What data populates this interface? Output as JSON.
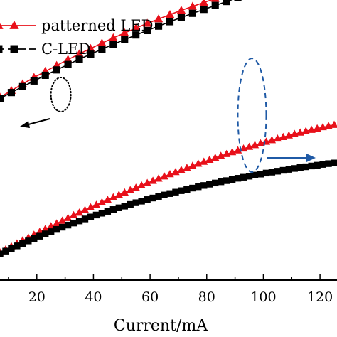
{
  "chart_data": {
    "type": "line",
    "xlabel": "Current/mA",
    "xlim": [
      7,
      126
    ],
    "x_ticks": [
      "20",
      "40",
      "60",
      "80",
      "100",
      "120"
    ],
    "x_tick_values": [
      20,
      40,
      60,
      80,
      100,
      120
    ],
    "legend": [
      {
        "label": "patterned LED",
        "color": "#e8101a",
        "marker": "triangle"
      },
      {
        "label": "C-LED",
        "color": "#000000",
        "marker": "square"
      }
    ],
    "left_axis_ylim": [
      0,
      100
    ],
    "right_axis_ylim": [
      0,
      100
    ],
    "series": [
      {
        "name": "patterned LED",
        "axis": "left",
        "color": "#e8101a",
        "marker": "triangle",
        "x": [
          7,
          11,
          15,
          19,
          23,
          27,
          31,
          35,
          39,
          43,
          47,
          51,
          55,
          59,
          63,
          67,
          71,
          75,
          79,
          83,
          87,
          91,
          95,
          99,
          103,
          107,
          111,
          115,
          119,
          123,
          126
        ],
        "y": [
          62.8,
          65.5,
          68.2,
          70.8,
          73.3,
          75.7,
          78.1,
          80.4,
          82.6,
          84.8,
          86.9,
          88.9,
          90.9,
          92.8,
          94.6,
          96.4,
          98.1,
          99.7,
          101.3,
          102.9,
          104.4,
          105.8,
          107.2,
          108.6,
          109.9,
          111.2,
          112.5,
          113.7,
          114.9,
          116.1,
          117.0
        ]
      },
      {
        "name": "C-LED",
        "axis": "left",
        "color": "#000000",
        "marker": "square",
        "x": [
          7,
          11,
          15,
          19,
          23,
          27,
          31,
          35,
          39,
          43,
          47,
          51,
          55,
          59,
          63,
          67,
          71,
          75,
          79,
          83,
          87,
          91,
          95,
          99,
          103,
          107,
          111,
          115,
          119,
          123,
          126
        ],
        "y": [
          62.3,
          64.7,
          67.1,
          69.4,
          71.7,
          73.9,
          76.1,
          78.2,
          80.3,
          82.3,
          84.3,
          86.2,
          88.1,
          89.9,
          91.7,
          93.5,
          95.2,
          96.9,
          98.5,
          100.1,
          101.7,
          103.2,
          104.7,
          106.2,
          107.6,
          109.0,
          110.4,
          111.7,
          113.0,
          114.3,
          115.3
        ]
      },
      {
        "name": "patterned LED",
        "axis": "right",
        "color": "#e8101a",
        "marker": "triangle",
        "x": [
          7,
          9,
          11,
          13,
          15,
          17,
          19,
          21,
          23,
          25,
          27,
          29,
          31,
          33,
          35,
          37,
          39,
          41,
          43,
          45,
          47,
          49,
          51,
          53,
          55,
          57,
          59,
          61,
          63,
          65,
          67,
          69,
          71,
          73,
          75,
          77,
          79,
          81,
          83,
          85,
          87,
          89,
          91,
          93,
          95,
          97,
          99,
          101,
          103,
          105,
          107,
          109,
          111,
          113,
          115,
          117,
          119,
          121,
          123,
          125
        ],
        "y": [
          1.6,
          3.9,
          6.2,
          8.4,
          10.7,
          12.9,
          15.1,
          17.3,
          19.5,
          21.6,
          23.7,
          25.8,
          27.9,
          30.0,
          32.0,
          34.0,
          36.0,
          37.9,
          39.9,
          41.8,
          43.7,
          45.6,
          47.4,
          49.2,
          51.0,
          52.8,
          54.6,
          56.3,
          58.0,
          59.7,
          61.4,
          63.0,
          64.6,
          66.2,
          67.8,
          69.4,
          70.9,
          72.4,
          73.9,
          75.4,
          76.8,
          78.2,
          79.6,
          81.0,
          82.3,
          83.6,
          84.9,
          86.2,
          87.4,
          88.6,
          89.8,
          91.0,
          92.1,
          93.2,
          94.3,
          95.3,
          96.3,
          97.3,
          98.2,
          99.1
        ]
      },
      {
        "name": "C-LED",
        "axis": "right",
        "color": "#000000",
        "marker": "square",
        "x": [
          7,
          9,
          11,
          13,
          15,
          17,
          19,
          21,
          23,
          25,
          27,
          29,
          31,
          33,
          35,
          37,
          39,
          41,
          43,
          45,
          47,
          49,
          51,
          53,
          55,
          57,
          59,
          61,
          63,
          65,
          67,
          69,
          71,
          73,
          75,
          77,
          79,
          81,
          83,
          85,
          87,
          89,
          91,
          93,
          95,
          97,
          99,
          101,
          103,
          105,
          107,
          109,
          111,
          113,
          115,
          117,
          119,
          121,
          123,
          125
        ],
        "y": [
          0.5,
          2.6,
          4.6,
          6.6,
          8.5,
          10.4,
          12.2,
          14.0,
          15.8,
          17.5,
          19.2,
          20.9,
          22.5,
          24.1,
          25.7,
          27.2,
          28.7,
          30.2,
          31.6,
          33.0,
          34.4,
          35.7,
          37.0,
          38.3,
          39.6,
          40.8,
          42.0,
          43.2,
          44.4,
          45.5,
          46.6,
          47.7,
          48.8,
          49.8,
          50.8,
          51.8,
          52.8,
          53.8,
          54.7,
          55.6,
          56.5,
          57.4,
          58.3,
          59.1,
          59.9,
          60.7,
          61.5,
          62.3,
          63.0,
          63.7,
          64.4,
          65.1,
          65.8,
          66.5,
          67.1,
          67.7,
          68.3,
          68.9,
          69.5,
          70.0
        ]
      }
    ],
    "annotations": [
      {
        "shape": "dotted-ellipse",
        "color": "#000000",
        "axis_arrow": "left",
        "x": 28,
        "y": 75
      },
      {
        "shape": "dashed-ellipse",
        "color": "#1f5aa6",
        "axis_arrow": "right",
        "x": 97,
        "y": 62
      }
    ]
  }
}
